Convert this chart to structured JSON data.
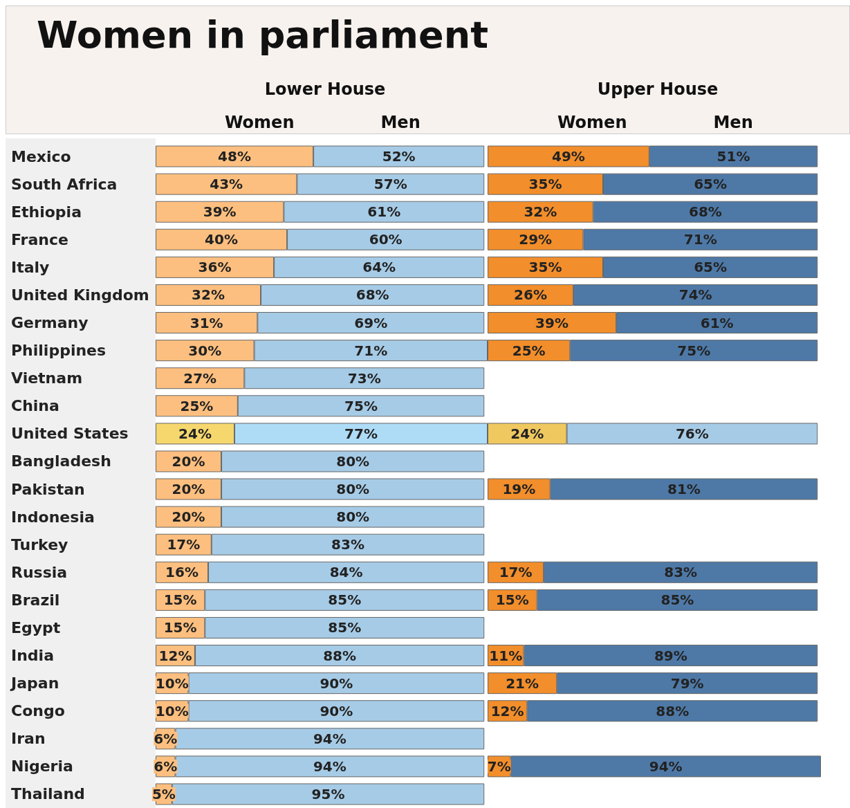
{
  "chart_data": [
    {
      "type": "bar",
      "orientation": "horizontal",
      "stacked": true,
      "title": "Women in parliament",
      "subtitle": "Lower House",
      "legend": "top",
      "tick_labels": "y",
      "xlim": [
        0,
        101
      ],
      "categories": [
        "Mexico",
        "South Africa",
        "Ethiopia",
        "France",
        "Italy",
        "United Kingdom",
        "Germany",
        "Philippines",
        "Vietnam",
        "China",
        "United States",
        "Bangladesh",
        "Pakistan",
        "Indonesia",
        "Turkey",
        "Russia",
        "Brazil",
        "Egypt",
        "India",
        "Japan",
        "Congo",
        "Iran",
        "Nigeria",
        "Thailand"
      ],
      "series": [
        {
          "name": "Women",
          "values": [
            48,
            43,
            39,
            40,
            36,
            32,
            31,
            30,
            27,
            25,
            24,
            20,
            20,
            20,
            17,
            16,
            15,
            15,
            12,
            10,
            10,
            6,
            6,
            5
          ],
          "value_labels": [
            "48%",
            "43%",
            "39%",
            "40%",
            "36%",
            "32%",
            "31%",
            "30%",
            "27%",
            "25%",
            "24%",
            "20%",
            "20%",
            "20%",
            "17%",
            "16%",
            "15%",
            "15%",
            "12%",
            "10%",
            "10%",
            "6%",
            "6%",
            "5%"
          ],
          "colors": [
            "#fdbf7f",
            "#fdbf7f",
            "#fdbf7f",
            "#fdbf7f",
            "#fdbf7f",
            "#fdbf7f",
            "#fdbf7f",
            "#fdbf7f",
            "#fdbf7f",
            "#fdbf7f",
            "#f5d76e",
            "#fdbf7f",
            "#fdbf7f",
            "#fdbf7f",
            "#fdbf7f",
            "#fdbf7f",
            "#fdbf7f",
            "#fdbf7f",
            "#fdbf7f",
            "#fdbf7f",
            "#fdbf7f",
            "#fdbf7f",
            "#fdbf7f",
            "#fdbf7f"
          ]
        },
        {
          "name": "Men",
          "values": [
            52,
            57,
            61,
            60,
            64,
            68,
            69,
            71,
            73,
            75,
            77,
            80,
            80,
            80,
            83,
            84,
            85,
            85,
            88,
            90,
            90,
            94,
            94,
            95
          ],
          "value_labels": [
            "52%",
            "57%",
            "61%",
            "60%",
            "64%",
            "68%",
            "69%",
            "71%",
            "73%",
            "75%",
            "77%",
            "80%",
            "80%",
            "80%",
            "83%",
            "84%",
            "85%",
            "85%",
            "88%",
            "90%",
            "90%",
            "94%",
            "94%",
            "95%"
          ],
          "colors": [
            "#a6cbe6",
            "#a6cbe6",
            "#a6cbe6",
            "#a6cbe6",
            "#a6cbe6",
            "#a6cbe6",
            "#a6cbe6",
            "#a6cbe6",
            "#a6cbe6",
            "#a6cbe6",
            "#aedcf7",
            "#a6cbe6",
            "#a6cbe6",
            "#a6cbe6",
            "#a6cbe6",
            "#a6cbe6",
            "#a6cbe6",
            "#a6cbe6",
            "#a6cbe6",
            "#a6cbe6",
            "#a6cbe6",
            "#a6cbe6",
            "#a6cbe6",
            "#a6cbe6"
          ]
        }
      ]
    },
    {
      "type": "bar",
      "orientation": "horizontal",
      "stacked": true,
      "subtitle": "Upper House",
      "legend": "top",
      "tick_labels": false,
      "xlim": [
        0,
        101
      ],
      "categories": [
        null,
        null,
        null,
        null,
        null,
        null,
        null,
        null,
        null,
        null,
        null,
        null,
        null,
        null,
        null,
        null,
        null,
        null,
        null,
        null,
        null,
        null,
        null,
        null
      ],
      "series": [
        {
          "name": "Women",
          "values": [
            49,
            35,
            32,
            29,
            35,
            26,
            39,
            25,
            null,
            null,
            24,
            null,
            19,
            null,
            null,
            17,
            15,
            null,
            11,
            21,
            12,
            null,
            7,
            null
          ],
          "value_labels": [
            "49%",
            "35%",
            "32%",
            "29%",
            "35%",
            "26%",
            "39%",
            "25%",
            null,
            null,
            "24%",
            null,
            "19%",
            null,
            null,
            "17%",
            "15%",
            null,
            "11%",
            "21%",
            "12%",
            null,
            "7%",
            null
          ],
          "colors": [
            "#f28e2b",
            "#f28e2b",
            "#f28e2b",
            "#f28e2b",
            "#f28e2b",
            "#f28e2b",
            "#f28e2b",
            "#f28e2b",
            "#f28e2b",
            "#f28e2b",
            "#f0c860",
            "#f28e2b",
            "#f28e2b",
            "#f28e2b",
            "#f28e2b",
            "#f28e2b",
            "#f28e2b",
            "#f28e2b",
            "#f28e2b",
            "#f28e2b",
            "#f28e2b",
            "#f28e2b",
            "#f28e2b",
            "#f28e2b"
          ]
        },
        {
          "name": "Men",
          "values": [
            51,
            65,
            68,
            71,
            65,
            74,
            61,
            75,
            null,
            null,
            76,
            null,
            81,
            null,
            null,
            83,
            85,
            null,
            89,
            79,
            88,
            null,
            94,
            null
          ],
          "value_labels": [
            "51%",
            "65%",
            "68%",
            "71%",
            "65%",
            "74%",
            "61%",
            "75%",
            null,
            null,
            "76%",
            null,
            "81%",
            null,
            null,
            "83%",
            "85%",
            null,
            "89%",
            "79%",
            "88%",
            null,
            "94%",
            null
          ],
          "colors": [
            "#4e79a7",
            "#4e79a7",
            "#4e79a7",
            "#4e79a7",
            "#4e79a7",
            "#4e79a7",
            "#4e79a7",
            "#4e79a7",
            "#4e79a7",
            "#4e79a7",
            "#a6cbe6",
            "#4e79a7",
            "#4e79a7",
            "#4e79a7",
            "#4e79a7",
            "#4e79a7",
            "#4e79a7",
            "#4e79a7",
            "#4e79a7",
            "#4e79a7",
            "#4e79a7",
            "#4e79a7",
            "#4e79a7",
            "#4e79a7"
          ]
        }
      ]
    }
  ]
}
